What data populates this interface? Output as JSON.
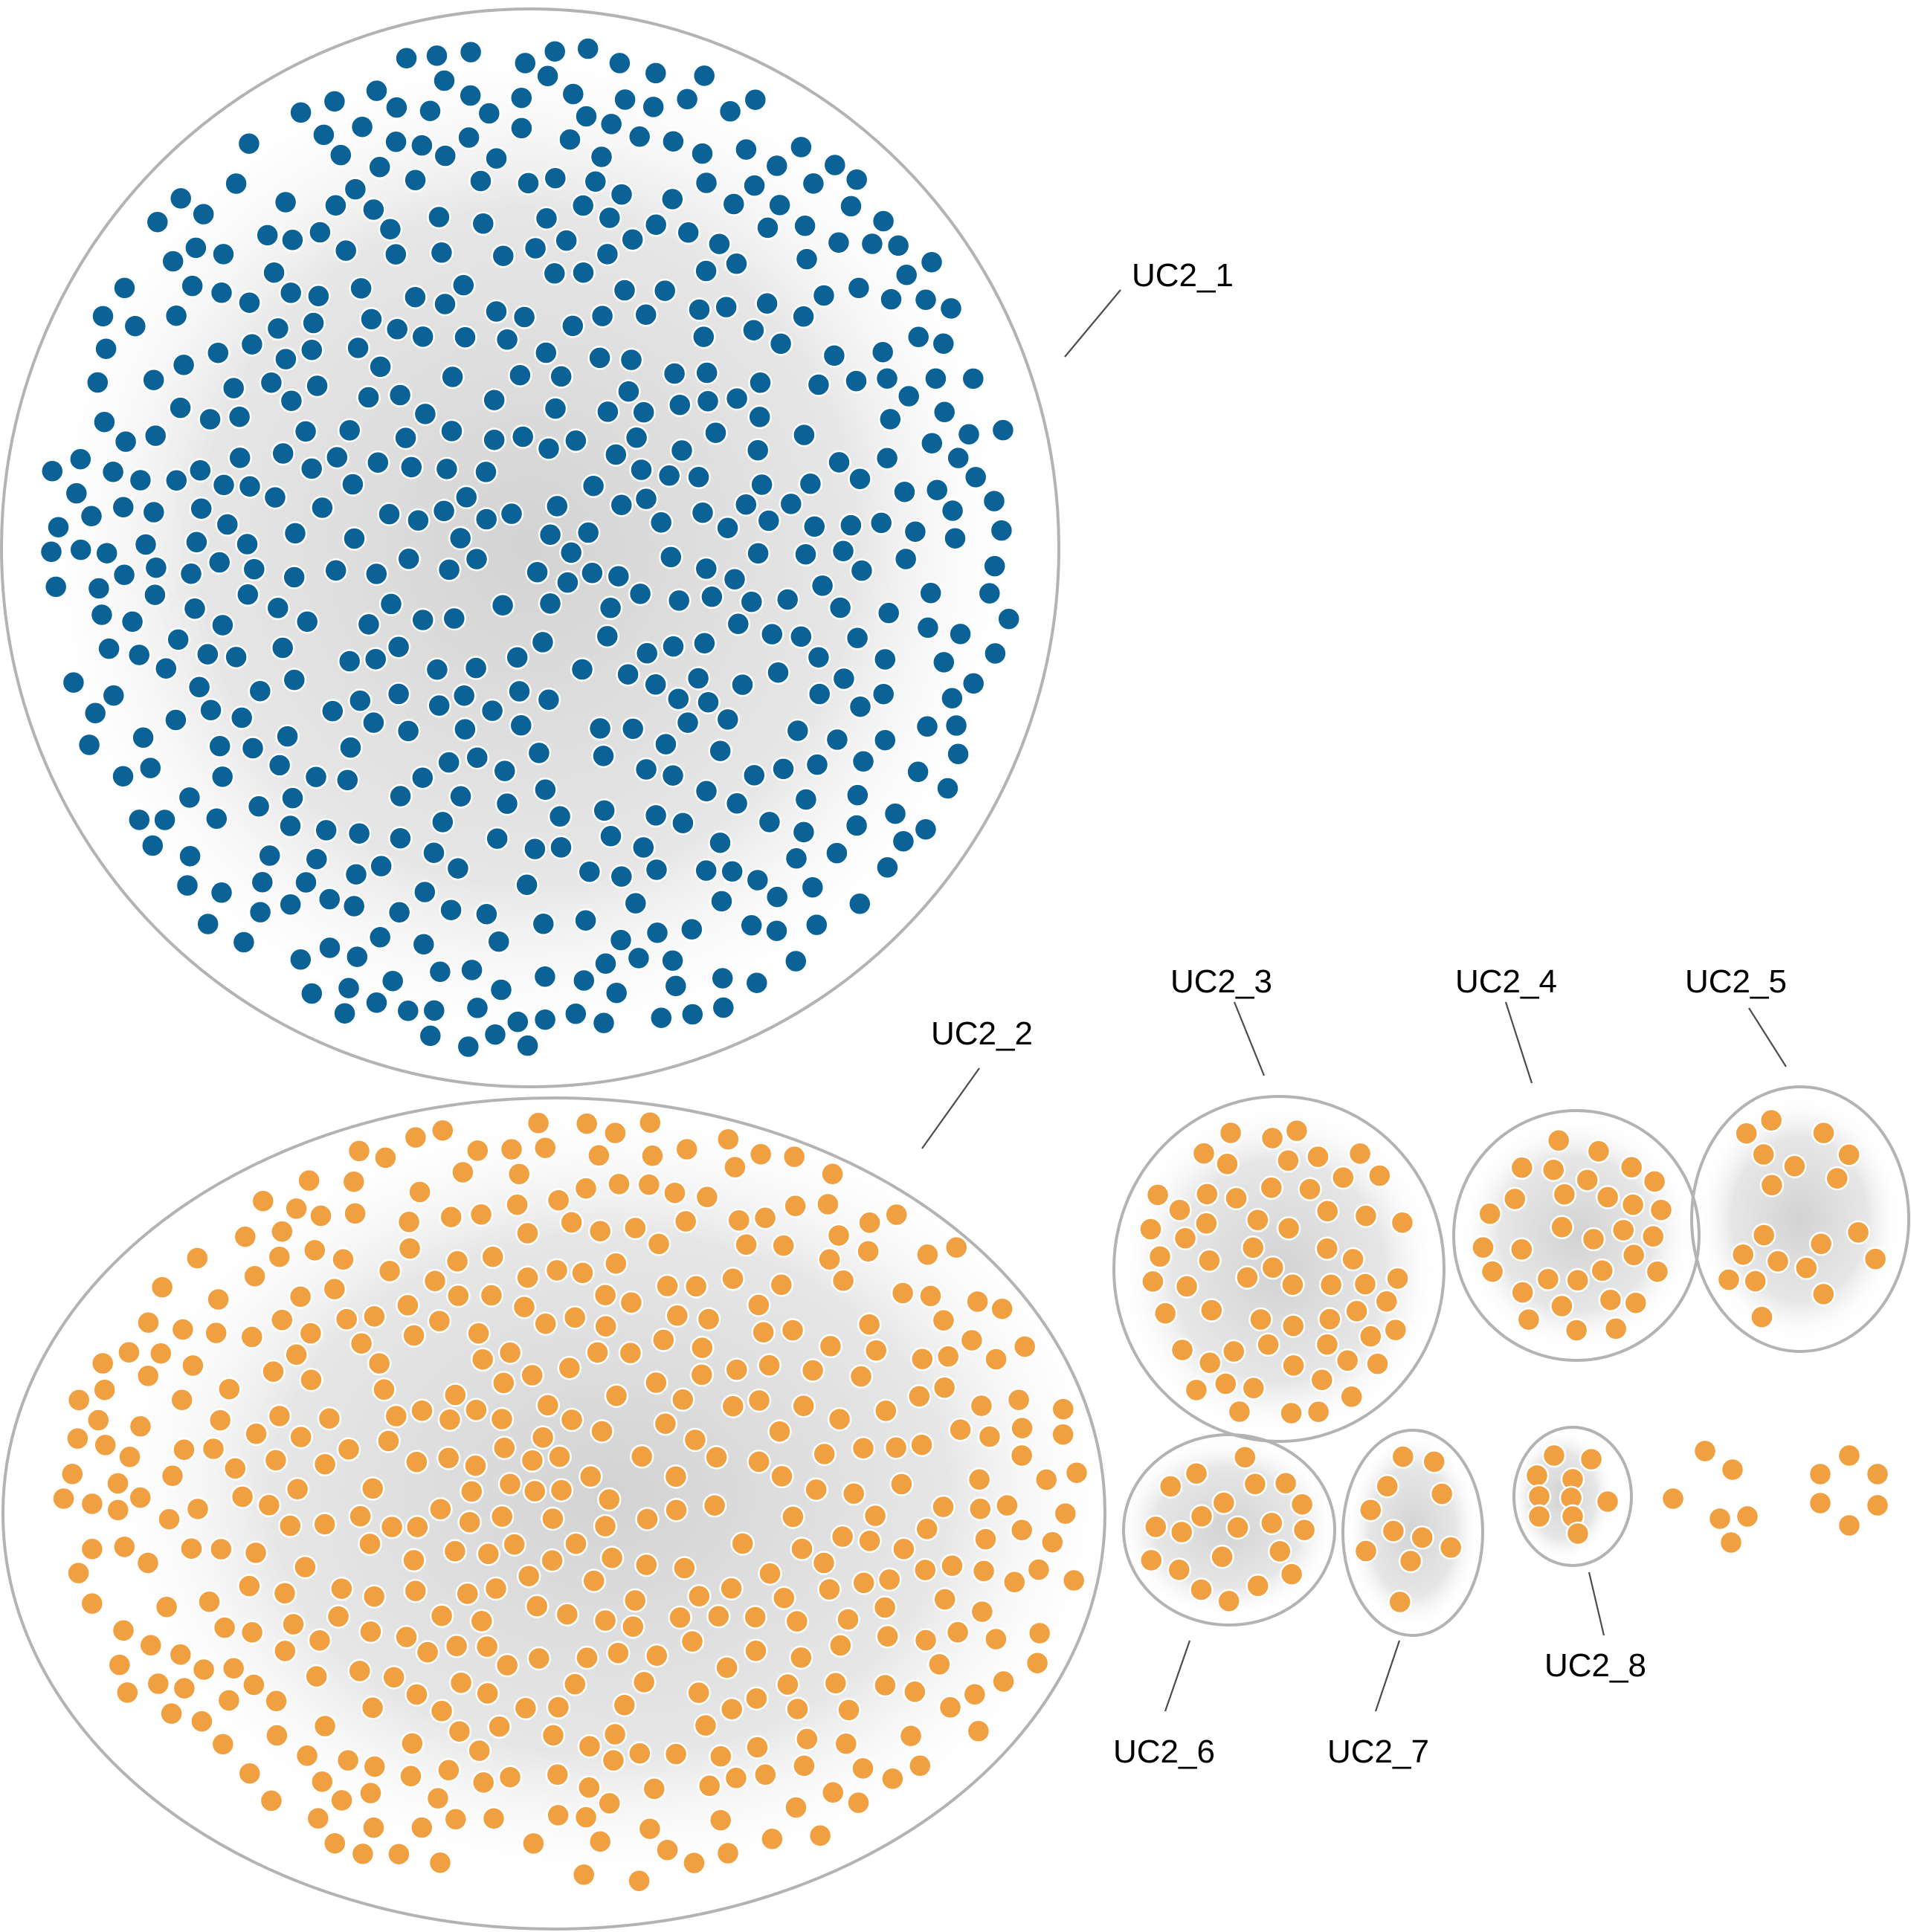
{
  "colors": {
    "cluster_1": "#0a6296",
    "cluster_other": "#f0a040",
    "boundary": "#b3b3b3",
    "edge_haze": "#d9d9d9",
    "leader": "#4d4d4d",
    "label_text": "#000000"
  },
  "clusters": [
    {
      "id": "UC2_1",
      "label": "UC2_1",
      "color": "cluster_1"
    },
    {
      "id": "UC2_2",
      "label": "UC2_2",
      "color": "cluster_other"
    },
    {
      "id": "UC2_3",
      "label": "UC2_3",
      "color": "cluster_other"
    },
    {
      "id": "UC2_4",
      "label": "UC2_4",
      "color": "cluster_other"
    },
    {
      "id": "UC2_5",
      "label": "UC2_5",
      "color": "cluster_other"
    },
    {
      "id": "UC2_6",
      "label": "UC2_6",
      "color": "cluster_other"
    },
    {
      "id": "UC2_7",
      "label": "UC2_7",
      "color": "cluster_other"
    },
    {
      "id": "UC2_8",
      "label": "UC2_8",
      "color": "cluster_other"
    }
  ],
  "unlabeled_groups": [
    {
      "id": "small-group-a",
      "color": "cluster_other"
    },
    {
      "id": "small-group-b",
      "color": "cluster_other"
    }
  ]
}
